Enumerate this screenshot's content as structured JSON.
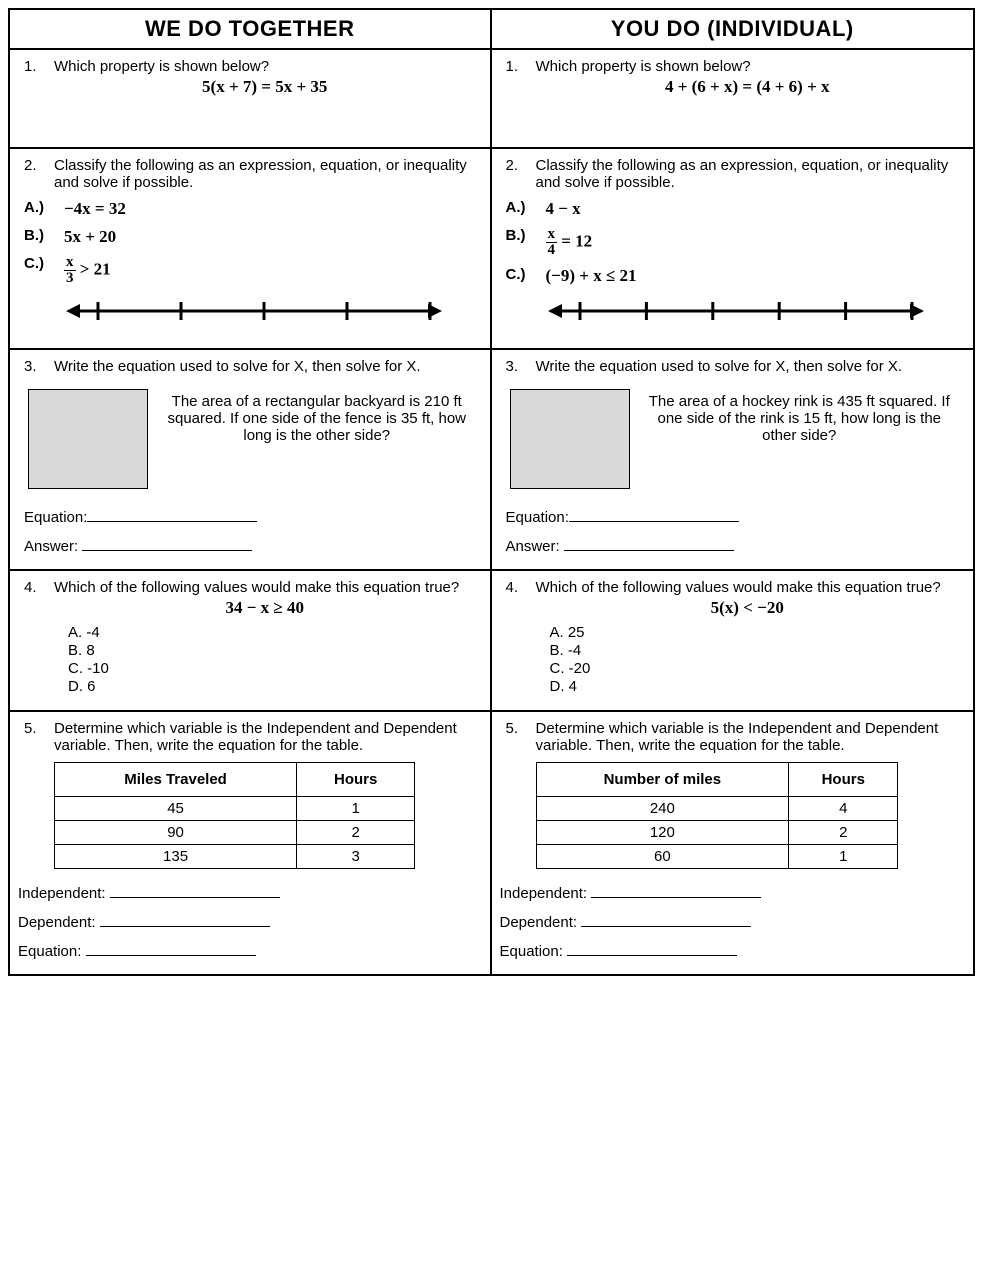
{
  "headers": {
    "left": "WE DO TOGETHER",
    "right": "YOU DO (INDIVIDUAL)"
  },
  "q1": {
    "left_num": "1.",
    "left_text": "Which property is shown below?",
    "left_eq": "5(x + 7) =  5x + 35",
    "right_num": "1.",
    "right_text": "Which property is shown below?",
    "right_eq": "4 + (6 + x) = (4 + 6) + x"
  },
  "q2": {
    "left_num": "2.",
    "left_text": "Classify the following as an expression, equation, or inequality and solve if possible.",
    "left_items": [
      {
        "lab": "A.)",
        "expr": "−4x = 32",
        "frac": false
      },
      {
        "lab": "B.)",
        "expr": "5x + 20",
        "frac": false
      },
      {
        "lab": "C.)",
        "frac": true,
        "nu": "x",
        "de": "3",
        "rest": "> 21"
      }
    ],
    "right_num": "2.",
    "right_text": "Classify the following as an expression, equation, or inequality and solve if possible.",
    "right_items": [
      {
        "lab": "A.)",
        "expr": "4 − x",
        "frac": false
      },
      {
        "lab": "B.)",
        "frac": true,
        "nu": "x",
        "de": "4",
        "rest": "= 12"
      },
      {
        "lab": "C.)",
        "expr": "(−9) + x ≤ 21",
        "frac": false
      }
    ],
    "numline_left_ticks": 5,
    "numline_right_ticks": 6
  },
  "q3": {
    "left_num": "3.",
    "left_text": "Write the equation used to solve for X, then solve for X.",
    "left_word": "The area of a rectangular backyard is 210 ft squared. If one side of the fence is 35 ft, how long is the other side?",
    "right_num": "3.",
    "right_text": "Write the equation used to solve for X, then solve for X.",
    "right_word": "The area of a hockey rink is 435 ft squared. If one side of the rink is 15 ft, how long is the other side?",
    "eq_label": "Equation:",
    "ans_label": "Answer:"
  },
  "q4": {
    "num": "4.",
    "text": "Which of the following values would make this equation true?",
    "left_eq": "34 − x ≥ 40",
    "right_eq": "5(x) < −20",
    "left_opts": [
      "A.  -4",
      "B.  8",
      "C.  -10",
      "D.  6"
    ],
    "right_opts": [
      "A.  25",
      "B.  -4",
      "C.  -20",
      "D.  4"
    ]
  },
  "q5": {
    "num": "5.",
    "text": "Determine which variable is the Independent and Dependent variable. Then, write the equation for the table.",
    "left_cols": [
      "Miles Traveled",
      "Hours"
    ],
    "left_rows": [
      [
        "45",
        "1"
      ],
      [
        "90",
        "2"
      ],
      [
        "135",
        "3"
      ]
    ],
    "right_cols": [
      "Number of miles",
      "Hours"
    ],
    "right_rows": [
      [
        "240",
        "4"
      ],
      [
        "120",
        "2"
      ],
      [
        "60",
        "1"
      ]
    ],
    "ind": "Independent:",
    "dep": "Dependent:",
    "eq": "Equation:"
  }
}
